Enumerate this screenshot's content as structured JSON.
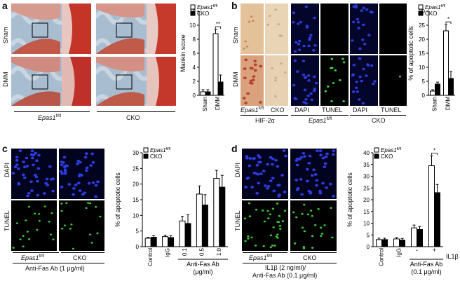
{
  "panels": {
    "a": {
      "letter": "a",
      "row_labels": [
        "Sham",
        "DMM"
      ],
      "col_label_1": "Epas1",
      "col_label_1_sup": "fl/fl",
      "col_label_2": "CKO",
      "colors": {
        "bone": "#c23a2a",
        "cartilage": "#e8c0bc",
        "bg": "#9ab3c9"
      }
    },
    "b": {
      "letter": "b",
      "row_labels": [
        "Sham",
        "DMM"
      ],
      "sub_labels": [
        "Epas1",
        "CKO",
        "DAPI",
        "TUNEL",
        "DAPI",
        "TUNEL"
      ],
      "sub_label_sup": "fl/fl",
      "group_labels": [
        "HIF-2α",
        "Epas1",
        "CKO"
      ],
      "group_label_sup": "fl/fl"
    },
    "c": {
      "letter": "c",
      "row_labels": [
        "DAPI",
        "TUNEL"
      ],
      "col_label_1": "Epas1",
      "col_label_1_sup": "fl/fl",
      "col_label_2": "CKO",
      "caption": "Anti-Fas Ab (1 μg/ml)"
    },
    "d": {
      "letter": "d",
      "row_labels": [
        "DAPI",
        "TUNEL"
      ],
      "col_label_1": "Epas1",
      "col_label_1_sup": "fl/fl",
      "col_label_2": "CKO",
      "caption_1": "IL1β (2 ng/ml)/",
      "caption_2": "Anti-Fas Ab (0.1 μg/ml)"
    }
  },
  "chart_data": [
    {
      "id": "a",
      "type": "bar",
      "ylabel": "Mankin score",
      "ylim": [
        0,
        12
      ],
      "yticks": [
        0,
        2,
        4,
        6,
        8,
        10,
        12
      ],
      "categories": [
        "Sham",
        "DMM"
      ],
      "legend": [
        "Epas1fl/fl",
        "CKO"
      ],
      "series": [
        {
          "name": "Epas1fl/fl",
          "color": "#ffffff",
          "values": [
            0.5,
            8.8
          ],
          "errors": [
            0.3,
            0.6
          ]
        },
        {
          "name": "CKO",
          "color": "#000000",
          "values": [
            0.5,
            1.9
          ],
          "errors": [
            0.3,
            1.0
          ]
        }
      ],
      "annotations": [
        {
          "text": "**",
          "category": 1
        }
      ]
    },
    {
      "id": "b",
      "type": "bar",
      "ylabel": "% of apoptotic cells",
      "ylim": [
        0,
        30
      ],
      "yticks": [
        0,
        5,
        10,
        15,
        20,
        25,
        30
      ],
      "categories": [
        "Sham",
        "DMM"
      ],
      "legend": [
        "Epas1fl/fl",
        "CKO"
      ],
      "series": [
        {
          "name": "Epas1fl/fl",
          "color": "#ffffff",
          "values": [
            1.5,
            23.0
          ],
          "errors": [
            0.5,
            2.2
          ]
        },
        {
          "name": "CKO",
          "color": "#000000",
          "values": [
            4.0,
            6.0
          ],
          "errors": [
            0.7,
            2.5
          ]
        }
      ],
      "annotations": [
        {
          "text": "*",
          "category": 1
        }
      ]
    },
    {
      "id": "c",
      "type": "bar",
      "ylabel": "% of apoptotic cells",
      "ylim": [
        0,
        30
      ],
      "yticks": [
        0,
        5,
        10,
        15,
        20,
        25,
        30
      ],
      "categories": [
        "Control",
        "IgG",
        "0.1",
        "0.5",
        "1.0"
      ],
      "xlabel": "Anti-Fas Ab",
      "xlabel2": "(μg/ml)",
      "legend": [
        "Epas1fl/fl",
        "CKO"
      ],
      "series": [
        {
          "name": "Epas1fl/fl",
          "color": "#ffffff",
          "values": [
            2.7,
            3.2,
            8.2,
            16.8,
            21.8
          ],
          "errors": [
            0.3,
            0.5,
            1.5,
            2.6,
            2.6
          ]
        },
        {
          "name": "CKO",
          "color": "#000000",
          "values": [
            3.0,
            2.9,
            7.4,
            13.3,
            19.0
          ],
          "errors": [
            0.5,
            0.6,
            2.8,
            3.3,
            3.8
          ]
        }
      ],
      "annotations": []
    },
    {
      "id": "d",
      "type": "bar",
      "ylabel": "% of apoptotic cells",
      "ylim": [
        0,
        40
      ],
      "yticks": [
        0,
        5,
        10,
        15,
        20,
        25,
        30,
        35,
        40
      ],
      "categories": [
        "Control",
        "IgG",
        "-",
        "+"
      ],
      "extra_label": "IL1β",
      "xlabel": "Anti-Fas Ab",
      "xlabel2": "(0.1 μg/ml)",
      "legend": [
        "Epas1fl/fl",
        "CKO"
      ],
      "series": [
        {
          "name": "Epas1fl/fl",
          "color": "#ffffff",
          "values": [
            3.0,
            3.3,
            8.0,
            34.5
          ],
          "errors": [
            0.6,
            0.6,
            1.2,
            4.2
          ]
        },
        {
          "name": "CKO",
          "color": "#000000",
          "values": [
            3.0,
            2.8,
            7.3,
            23.0
          ],
          "errors": [
            0.6,
            0.7,
            1.3,
            3.5
          ]
        }
      ],
      "annotations": [
        {
          "text": "*",
          "category": 3
        }
      ]
    }
  ]
}
